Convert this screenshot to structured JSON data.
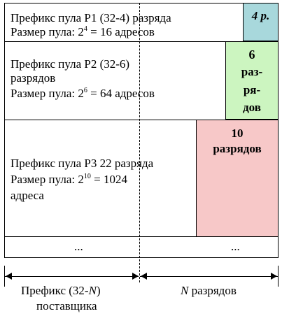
{
  "rows": [
    {
      "lines": [
        "Префикс  пула  P1 (32-4) разряда"
      ],
      "size_prefix": "Размер пула:  2",
      "exp": "4",
      "size_suffix": " = 16 адресов",
      "box": "4 р.",
      "box_color": "#a8d8dc"
    },
    {
      "lines": [
        "Префикс  пула  P2 (32-6)",
        "разрядов"
      ],
      "size_prefix": "Размер пула:  2",
      "exp": "6",
      "size_suffix": " = 64 адресов",
      "box_lines": [
        "6",
        "раз-",
        "ря-",
        "дов"
      ],
      "box_color": "#ccf5c0"
    },
    {
      "lines": [
        "Префикс  пула  P3 22 разряда"
      ],
      "size_prefix": "Размер пула:  2",
      "exp": "10",
      "size_suffix": " = 1024",
      "extra_line": "адреса",
      "box_lines": [
        "10",
        "разрядов"
      ],
      "box_color": "#f7c8c8"
    }
  ],
  "ellipsis_left": "...",
  "ellipsis_right": "...",
  "bottom": {
    "left_line1_prefix": "Префикс  (32-",
    "left_line1_var": "N",
    "left_line1_suffix": ")",
    "left_line2": "поставщика",
    "right_var": "N",
    "right_suffix": " разрядов"
  }
}
